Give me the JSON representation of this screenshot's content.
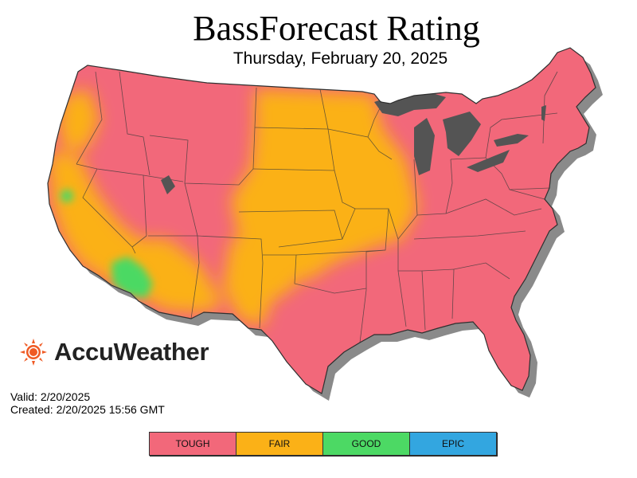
{
  "header": {
    "title": "BassForecast Rating",
    "subtitle": "Thursday, February 20, 2025"
  },
  "brand": {
    "name": "AccuWeather",
    "icon": "sun-icon",
    "color": "#ef5a24"
  },
  "meta": {
    "valid": "Valid: 2/20/2025",
    "created": "Created: 2/20/2025 15:56 GMT"
  },
  "legend": {
    "items": [
      {
        "label": "TOUGH",
        "color": "#f2687a"
      },
      {
        "label": "FAIR",
        "color": "#fbb117"
      },
      {
        "label": "GOOD",
        "color": "#4cd964"
      },
      {
        "label": "EPIC",
        "color": "#33a6e0"
      }
    ]
  },
  "map": {
    "dominant_rating": "TOUGH",
    "water_color": "#545454",
    "shadow_color": "#8a8a8a"
  }
}
